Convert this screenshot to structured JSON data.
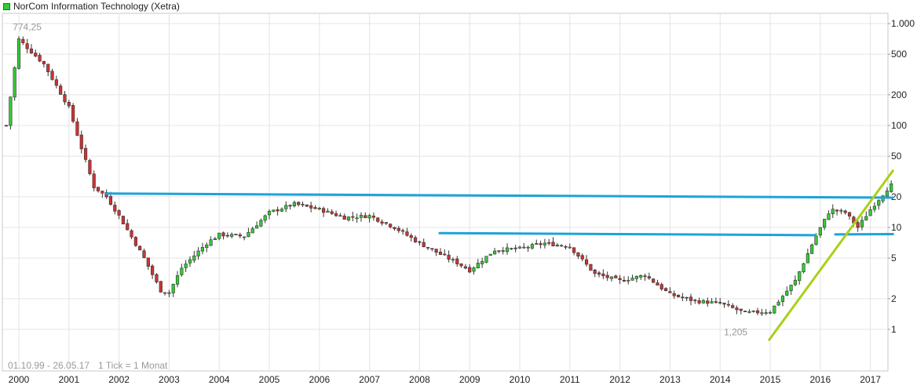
{
  "chart_data": {
    "type": "candlestick",
    "title": "NorCom Information Technology (Xetra)",
    "date_range": "01.10.99 - 26.05.17",
    "tick_info": "1 Tick = 1 Monat",
    "x_labels": [
      "2000",
      "2001",
      "2002",
      "2003",
      "2004",
      "2005",
      "2006",
      "2007",
      "2008",
      "2009",
      "2010",
      "2011",
      "2012",
      "2013",
      "2014",
      "2015",
      "2016",
      "2017"
    ],
    "y_scale": "log",
    "y_ticks": [
      1,
      2,
      5,
      10,
      20,
      50,
      100,
      200,
      500,
      1000
    ],
    "y_tick_labels": [
      "1",
      "2",
      "5",
      "10",
      "20",
      "50",
      "100",
      "200",
      "500",
      "1.000"
    ],
    "y_range": [
      0.63,
      1200
    ],
    "annotations": [
      {
        "text": "774,25",
        "x": 2000.04,
        "y": 774.25
      },
      {
        "text": "1,205",
        "x": 2014.5,
        "y": 1.205
      }
    ],
    "colors": {
      "up": "#33cc33",
      "down": "#cc3333",
      "resistance": "#1ea3d9",
      "trend": "#a8d11a"
    },
    "lines": [
      {
        "name": "resistance-upper",
        "color": "#1ea3d9",
        "points": [
          [
            2001.75,
            21.5
          ],
          [
            2017.45,
            19.6
          ]
        ]
      },
      {
        "name": "resistance-lower",
        "color": "#1ea3d9",
        "points": [
          [
            2008.4,
            8.8
          ],
          [
            2015.9,
            8.4
          ]
        ]
      },
      {
        "name": "resistance-lower-2",
        "color": "#1ea3d9",
        "points": [
          [
            2016.3,
            8.55
          ],
          [
            2017.45,
            8.6
          ]
        ]
      },
      {
        "name": "trend-support",
        "color": "#a8d11a",
        "points": [
          [
            2014.98,
            0.79
          ],
          [
            2017.45,
            36
          ]
        ]
      }
    ],
    "monthly_close": [
      [
        1999.75,
        100
      ],
      [
        2000.0,
        700
      ],
      [
        2000.5,
        400
      ],
      [
        2001.0,
        150
      ],
      [
        2001.25,
        60
      ],
      [
        2001.5,
        25
      ],
      [
        2001.75,
        20
      ],
      [
        2002.0,
        13
      ],
      [
        2002.5,
        5
      ],
      [
        2002.83,
        2.4
      ],
      [
        2003.0,
        2.3
      ],
      [
        2003.25,
        4
      ],
      [
        2003.75,
        7
      ],
      [
        2004.0,
        8.5
      ],
      [
        2004.5,
        8.2
      ],
      [
        2005.0,
        14
      ],
      [
        2005.5,
        17
      ],
      [
        2006.0,
        15
      ],
      [
        2006.5,
        12.5
      ],
      [
        2007.0,
        13
      ],
      [
        2007.5,
        10
      ],
      [
        2008.0,
        7
      ],
      [
        2008.4,
        5.5
      ],
      [
        2008.75,
        4.5
      ],
      [
        2009.0,
        3.8
      ],
      [
        2009.5,
        6
      ],
      [
        2010.0,
        6.2
      ],
      [
        2010.5,
        7
      ],
      [
        2011.0,
        6.5
      ],
      [
        2011.5,
        3.5
      ],
      [
        2012.0,
        3
      ],
      [
        2012.5,
        3.4
      ],
      [
        2013.0,
        2.2
      ],
      [
        2013.5,
        1.9
      ],
      [
        2014.0,
        1.8
      ],
      [
        2014.5,
        1.45
      ],
      [
        2015.0,
        1.5
      ],
      [
        2015.5,
        3
      ],
      [
        2015.9,
        8
      ],
      [
        2016.2,
        15
      ],
      [
        2016.5,
        14
      ],
      [
        2016.75,
        10
      ],
      [
        2017.0,
        15
      ],
      [
        2017.4,
        26
      ]
    ]
  }
}
